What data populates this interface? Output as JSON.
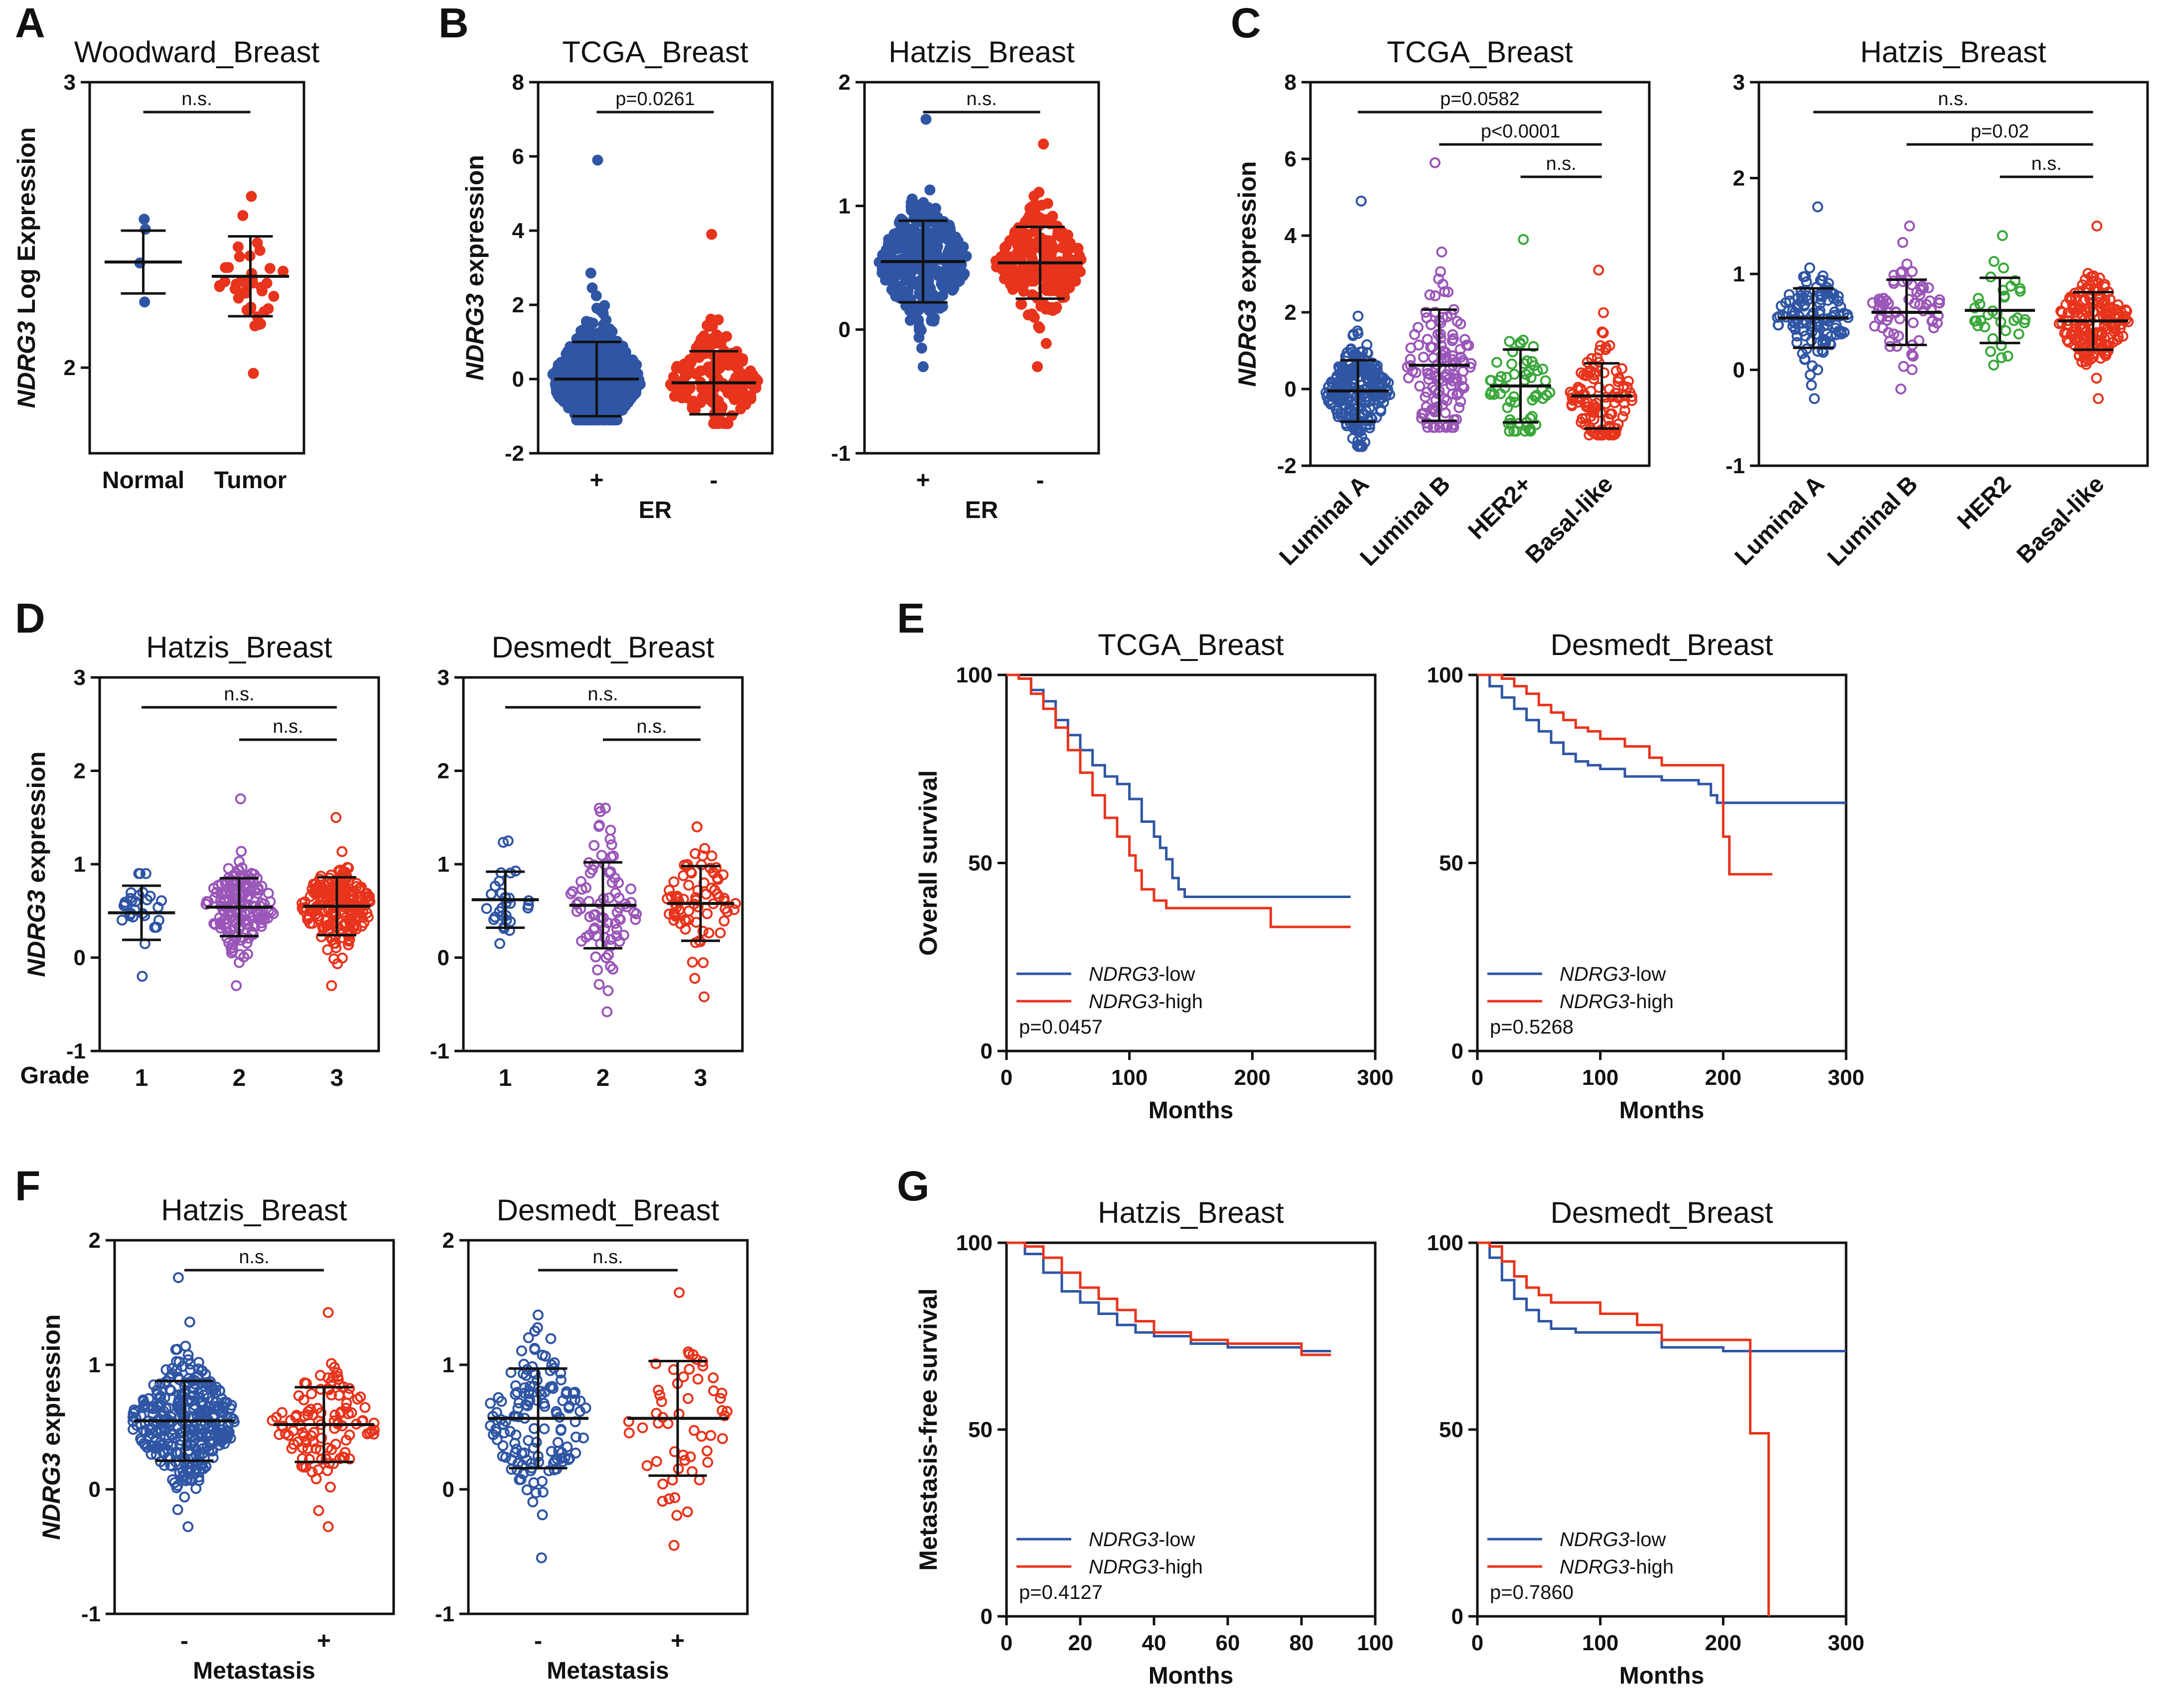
{
  "colors": {
    "blue": "#2f55a4",
    "red": "#e8341c",
    "purple": "#9a56b8",
    "green": "#3aa83a",
    "black": "#111111"
  },
  "chart_data": [
    {
      "id": "A1",
      "panel": "A",
      "type": "scatter",
      "title": "Woodward_Breast",
      "ylabel": "NDRG3 Log Expression",
      "ylim": [
        1.7,
        3
      ],
      "yticks": [
        2,
        3
      ],
      "xlabel": "",
      "groups": [
        {
          "label": "Normal",
          "color": "blue",
          "filled": true,
          "n": 4,
          "mean": 2.37,
          "sd": 0.11,
          "min": 2.23,
          "max": 2.52
        },
        {
          "label": "Tumor",
          "color": "red",
          "filled": true,
          "n": 40,
          "mean": 2.32,
          "sd": 0.14,
          "min": 1.98,
          "max": 2.6
        }
      ],
      "brackets": [
        {
          "from": 0,
          "to": 1,
          "text": "n.s.",
          "level": 0
        }
      ]
    },
    {
      "id": "B1",
      "panel": "B",
      "type": "scatter",
      "title": "TCGA_Breast",
      "ylabel": "NDRG3 expression",
      "ylim": [
        -2,
        8
      ],
      "yticks": [
        -2,
        0,
        2,
        4,
        6,
        8
      ],
      "xlabel": "ER",
      "groups": [
        {
          "label": "+",
          "color": "blue",
          "filled": true,
          "n": 600,
          "mean": 0.0,
          "sd": 1.0,
          "min": -1.1,
          "max": 5.9
        },
        {
          "label": "-",
          "color": "red",
          "filled": true,
          "n": 170,
          "mean": -0.1,
          "sd": 0.85,
          "min": -1.2,
          "max": 3.9
        }
      ],
      "brackets": [
        {
          "from": 0,
          "to": 1,
          "text": "p=0.0261",
          "level": 0
        }
      ]
    },
    {
      "id": "B2",
      "panel": "",
      "type": "scatter",
      "title": "Hatzis_Breast",
      "ylabel": "",
      "ylim": [
        -1,
        2
      ],
      "yticks": [
        -1,
        0,
        1,
        2
      ],
      "xlabel": "ER",
      "groups": [
        {
          "label": "+",
          "color": "blue",
          "filled": true,
          "n": 300,
          "mean": 0.55,
          "sd": 0.33,
          "min": -0.3,
          "max": 1.7
        },
        {
          "label": "-",
          "color": "red",
          "filled": true,
          "n": 220,
          "mean": 0.54,
          "sd": 0.29,
          "min": -0.3,
          "max": 1.5
        }
      ],
      "brackets": [
        {
          "from": 0,
          "to": 1,
          "text": "n.s.",
          "level": 0
        }
      ]
    },
    {
      "id": "C1",
      "panel": "C",
      "type": "scatter",
      "title": "TCGA_Breast",
      "ylabel": "NDRG3 expression",
      "ylim": [
        -2,
        8
      ],
      "yticks": [
        -2,
        0,
        2,
        4,
        6,
        8
      ],
      "xlabel": "",
      "groups": [
        {
          "label": "Luminal A",
          "color": "blue",
          "filled": false,
          "n": 230,
          "mean": -0.05,
          "sd": 0.8,
          "min": -1.5,
          "max": 4.9
        },
        {
          "label": "Luminal B",
          "color": "purple",
          "filled": false,
          "n": 130,
          "mean": 0.62,
          "sd": 1.45,
          "min": -1.0,
          "max": 5.9
        },
        {
          "label": "HER2+",
          "color": "green",
          "filled": false,
          "n": 60,
          "mean": 0.08,
          "sd": 0.95,
          "min": -1.1,
          "max": 3.9
        },
        {
          "label": "Basal-like",
          "color": "red",
          "filled": false,
          "n": 110,
          "mean": -0.18,
          "sd": 0.85,
          "min": -1.2,
          "max": 3.1
        }
      ],
      "brackets": [
        {
          "from": 0,
          "to": 3,
          "text": "p=0.0582",
          "level": 0
        },
        {
          "from": 1,
          "to": 3,
          "text": "p<0.0001",
          "level": 1
        },
        {
          "from": 2,
          "to": 3,
          "text": "n.s.",
          "level": 2
        }
      ]
    },
    {
      "id": "C2",
      "panel": "",
      "type": "scatter",
      "title": "Hatzis_Breast",
      "ylabel": "",
      "ylim": [
        -1,
        3
      ],
      "yticks": [
        -1,
        0,
        1,
        2,
        3
      ],
      "xlabel": "",
      "groups": [
        {
          "label": "Luminal A",
          "color": "blue",
          "filled": false,
          "n": 120,
          "mean": 0.54,
          "sd": 0.31,
          "min": -0.3,
          "max": 1.7
        },
        {
          "label": "Luminal B",
          "color": "purple",
          "filled": false,
          "n": 70,
          "mean": 0.6,
          "sd": 0.34,
          "min": -0.2,
          "max": 1.5
        },
        {
          "label": "HER2",
          "color": "green",
          "filled": false,
          "n": 35,
          "mean": 0.62,
          "sd": 0.34,
          "min": 0.05,
          "max": 1.4
        },
        {
          "label": "Basal-like",
          "color": "red",
          "filled": false,
          "n": 180,
          "mean": 0.51,
          "sd": 0.3,
          "min": -0.3,
          "max": 1.5
        }
      ],
      "brackets": [
        {
          "from": 0,
          "to": 3,
          "text": "n.s.",
          "level": 0
        },
        {
          "from": 1,
          "to": 3,
          "text": "p=0.02",
          "level": 1
        },
        {
          "from": 2,
          "to": 3,
          "text": "n.s.",
          "level": 2
        }
      ]
    },
    {
      "id": "D1",
      "panel": "D",
      "type": "scatter",
      "title": "Hatzis_Breast",
      "ylabel": "NDRG3 expression",
      "ylim": [
        -1,
        3
      ],
      "yticks": [
        -1,
        0,
        1,
        2,
        3
      ],
      "xlabel": "Grade",
      "groups": [
        {
          "label": "1",
          "color": "blue",
          "filled": false,
          "n": 30,
          "mean": 0.48,
          "sd": 0.29,
          "min": -0.2,
          "max": 0.9
        },
        {
          "label": "2",
          "color": "purple",
          "filled": false,
          "n": 160,
          "mean": 0.54,
          "sd": 0.31,
          "min": -0.3,
          "max": 1.7
        },
        {
          "label": "3",
          "color": "red",
          "filled": false,
          "n": 200,
          "mean": 0.55,
          "sd": 0.31,
          "min": -0.3,
          "max": 1.5
        }
      ],
      "brackets": [
        {
          "from": 0,
          "to": 2,
          "text": "n.s.",
          "level": 0
        },
        {
          "from": 1,
          "to": 2,
          "text": "n.s.",
          "level": 1
        }
      ]
    },
    {
      "id": "D2",
      "panel": "",
      "type": "scatter",
      "title": "Desmedt_Breast",
      "ylabel": "",
      "ylim": [
        -1,
        3
      ],
      "yticks": [
        -1,
        0,
        1,
        2,
        3
      ],
      "xlabel": "",
      "groups": [
        {
          "label": "1",
          "color": "blue",
          "filled": false,
          "n": 30,
          "mean": 0.62,
          "sd": 0.3,
          "min": 0.15,
          "max": 1.25
        },
        {
          "label": "2",
          "color": "purple",
          "filled": false,
          "n": 80,
          "mean": 0.56,
          "sd": 0.46,
          "min": -0.58,
          "max": 1.6
        },
        {
          "label": "3",
          "color": "red",
          "filled": false,
          "n": 75,
          "mean": 0.58,
          "sd": 0.4,
          "min": -0.42,
          "max": 1.4
        }
      ],
      "brackets": [
        {
          "from": 0,
          "to": 2,
          "text": "n.s.",
          "level": 0
        },
        {
          "from": 1,
          "to": 2,
          "text": "n.s.",
          "level": 1
        }
      ]
    },
    {
      "id": "E1",
      "panel": "E",
      "type": "line",
      "title": "TCGA_Breast",
      "ylabel": "Overall survival",
      "xlabel": "Months",
      "xlim": [
        0,
        300
      ],
      "ylim": [
        0,
        100
      ],
      "xticks": [
        0,
        100,
        200,
        300
      ],
      "yticks": [
        0,
        50,
        100
      ],
      "pvalue": "p=0.0457",
      "series": [
        {
          "name": "NDRG3-low",
          "color": "blue",
          "x": [
            0,
            10,
            20,
            30,
            40,
            50,
            60,
            70,
            80,
            90,
            100,
            110,
            120,
            125,
            130,
            135,
            140,
            145,
            280
          ],
          "y": [
            100,
            99,
            96,
            93,
            88,
            84,
            80,
            76,
            73,
            71,
            67,
            61,
            57,
            54,
            51,
            46,
            43,
            41,
            41
          ]
        },
        {
          "name": "NDRG3-high",
          "color": "red",
          "x": [
            0,
            10,
            20,
            30,
            40,
            50,
            60,
            70,
            80,
            90,
            100,
            105,
            110,
            120,
            130,
            140,
            210,
            215,
            280
          ],
          "y": [
            100,
            99,
            95,
            91,
            86,
            80,
            74,
            68,
            62,
            57,
            52,
            48,
            43,
            40,
            38,
            38,
            38,
            33,
            33
          ]
        }
      ]
    },
    {
      "id": "E2",
      "panel": "",
      "type": "line",
      "title": "Desmedt_Breast",
      "ylabel": "",
      "xlabel": "Months",
      "xlim": [
        0,
        300
      ],
      "ylim": [
        0,
        100
      ],
      "xticks": [
        0,
        100,
        200,
        300
      ],
      "yticks": [
        0,
        50,
        100
      ],
      "pvalue": "p=0.5268",
      "series": [
        {
          "name": "NDRG3-low",
          "color": "blue",
          "x": [
            0,
            10,
            20,
            30,
            40,
            50,
            60,
            70,
            80,
            90,
            100,
            120,
            150,
            180,
            190,
            195,
            300
          ],
          "y": [
            100,
            97,
            94,
            91,
            88,
            85,
            82,
            79,
            77,
            76,
            75,
            73,
            72,
            71,
            68,
            66,
            66
          ]
        },
        {
          "name": "NDRG3-high",
          "color": "red",
          "x": [
            0,
            10,
            20,
            30,
            40,
            50,
            60,
            70,
            80,
            90,
            100,
            120,
            140,
            150,
            195,
            200,
            205,
            240
          ],
          "y": [
            100,
            100,
            99,
            97,
            95,
            92,
            90,
            88,
            86,
            85,
            83,
            81,
            78,
            76,
            76,
            57,
            47,
            47
          ]
        }
      ]
    },
    {
      "id": "F1",
      "panel": "F",
      "type": "scatter",
      "title": "Hatzis_Breast",
      "ylabel": "NDRG3 expression",
      "ylim": [
        -1,
        2
      ],
      "yticks": [
        -1,
        0,
        1,
        2
      ],
      "xlabel": "Metastasis",
      "groups": [
        {
          "label": "-",
          "color": "blue",
          "filled": false,
          "n": 330,
          "mean": 0.55,
          "sd": 0.32,
          "min": -0.3,
          "max": 1.7
        },
        {
          "label": "+",
          "color": "red",
          "filled": false,
          "n": 110,
          "mean": 0.52,
          "sd": 0.3,
          "min": -0.3,
          "max": 1.42
        }
      ],
      "brackets": [
        {
          "from": 0,
          "to": 1,
          "text": "n.s.",
          "level": 0
        }
      ]
    },
    {
      "id": "F2",
      "panel": "",
      "type": "scatter",
      "title": "Desmedt_Breast",
      "ylabel": "",
      "ylim": [
        -1,
        2
      ],
      "yticks": [
        -1,
        0,
        1,
        2
      ],
      "xlabel": "Metastasis",
      "groups": [
        {
          "label": "-",
          "color": "blue",
          "filled": false,
          "n": 140,
          "mean": 0.57,
          "sd": 0.4,
          "min": -0.55,
          "max": 1.4
        },
        {
          "label": "+",
          "color": "red",
          "filled": false,
          "n": 55,
          "mean": 0.57,
          "sd": 0.46,
          "min": -0.45,
          "max": 1.58
        }
      ],
      "brackets": [
        {
          "from": 0,
          "to": 1,
          "text": "n.s.",
          "level": 0
        }
      ]
    },
    {
      "id": "G1",
      "panel": "G",
      "type": "line",
      "title": "Hatzis_Breast",
      "ylabel": "Metastasis-free survival",
      "xlabel": "Months",
      "xlim": [
        0,
        100
      ],
      "ylim": [
        0,
        100
      ],
      "xticks": [
        0,
        20,
        40,
        60,
        80,
        100
      ],
      "yticks": [
        0,
        50,
        100
      ],
      "pvalue": "p=0.4127",
      "series": [
        {
          "name": "NDRG3-low",
          "color": "blue",
          "x": [
            0,
            5,
            10,
            15,
            20,
            25,
            30,
            35,
            40,
            50,
            60,
            70,
            80,
            88
          ],
          "y": [
            100,
            97,
            92,
            87,
            84,
            81,
            78,
            76,
            75,
            73,
            72,
            72,
            71,
            71
          ]
        },
        {
          "name": "NDRG3-high",
          "color": "red",
          "x": [
            0,
            5,
            10,
            15,
            20,
            25,
            30,
            35,
            40,
            50,
            60,
            70,
            80,
            88
          ],
          "y": [
            100,
            99,
            96,
            92,
            88,
            85,
            82,
            79,
            76,
            74,
            73,
            73,
            70,
            70
          ]
        }
      ]
    },
    {
      "id": "G2",
      "panel": "",
      "type": "line",
      "title": "Desmedt_Breast",
      "ylabel": "",
      "xlabel": "Months",
      "xlim": [
        0,
        300
      ],
      "ylim": [
        0,
        100
      ],
      "xticks": [
        0,
        100,
        200,
        300
      ],
      "yticks": [
        0,
        50,
        100
      ],
      "pvalue": "p=0.7860",
      "series": [
        {
          "name": "NDRG3-low",
          "color": "blue",
          "x": [
            0,
            10,
            20,
            30,
            40,
            50,
            60,
            80,
            100,
            150,
            200,
            300
          ],
          "y": [
            100,
            96,
            90,
            85,
            82,
            79,
            77,
            76,
            76,
            72,
            71,
            71
          ]
        },
        {
          "name": "NDRG3-high",
          "color": "red",
          "x": [
            0,
            10,
            20,
            30,
            40,
            50,
            60,
            80,
            100,
            130,
            150,
            220,
            222,
            235,
            237
          ],
          "y": [
            100,
            99,
            95,
            91,
            88,
            86,
            84,
            84,
            81,
            78,
            74,
            74,
            49,
            49,
            0
          ]
        }
      ]
    }
  ],
  "legend": {
    "low_italic": "NDRG3",
    "low_suffix": "-low",
    "high_italic": "NDRG3",
    "high_suffix": "-high"
  }
}
